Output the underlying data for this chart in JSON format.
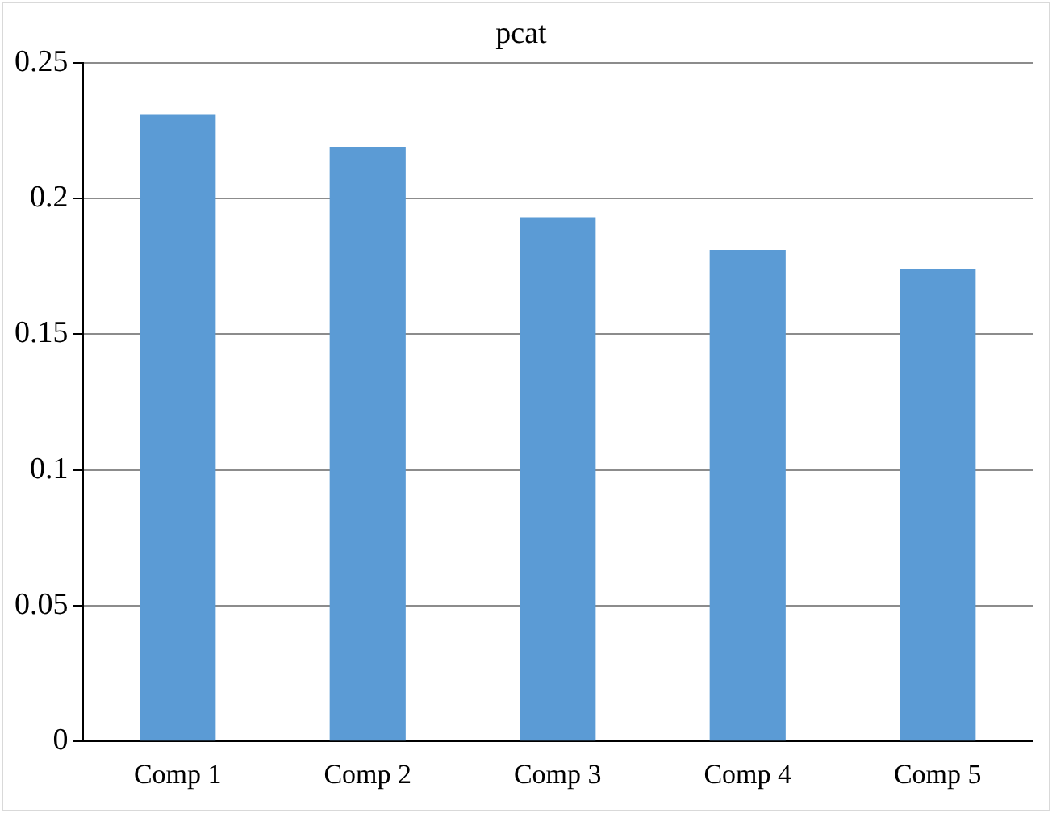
{
  "chart_data": {
    "type": "bar",
    "title": "pcat",
    "categories": [
      "Comp 1",
      "Comp 2",
      "Comp 3",
      "Comp 4",
      "Comp 5"
    ],
    "values": [
      0.231,
      0.219,
      0.193,
      0.181,
      0.174
    ],
    "color": "#5b9bd5",
    "ylim": [
      0,
      0.25
    ],
    "yticks": [
      0,
      0.05,
      0.1,
      0.15,
      0.2,
      0.25
    ],
    "grid": "y",
    "legend": false
  }
}
